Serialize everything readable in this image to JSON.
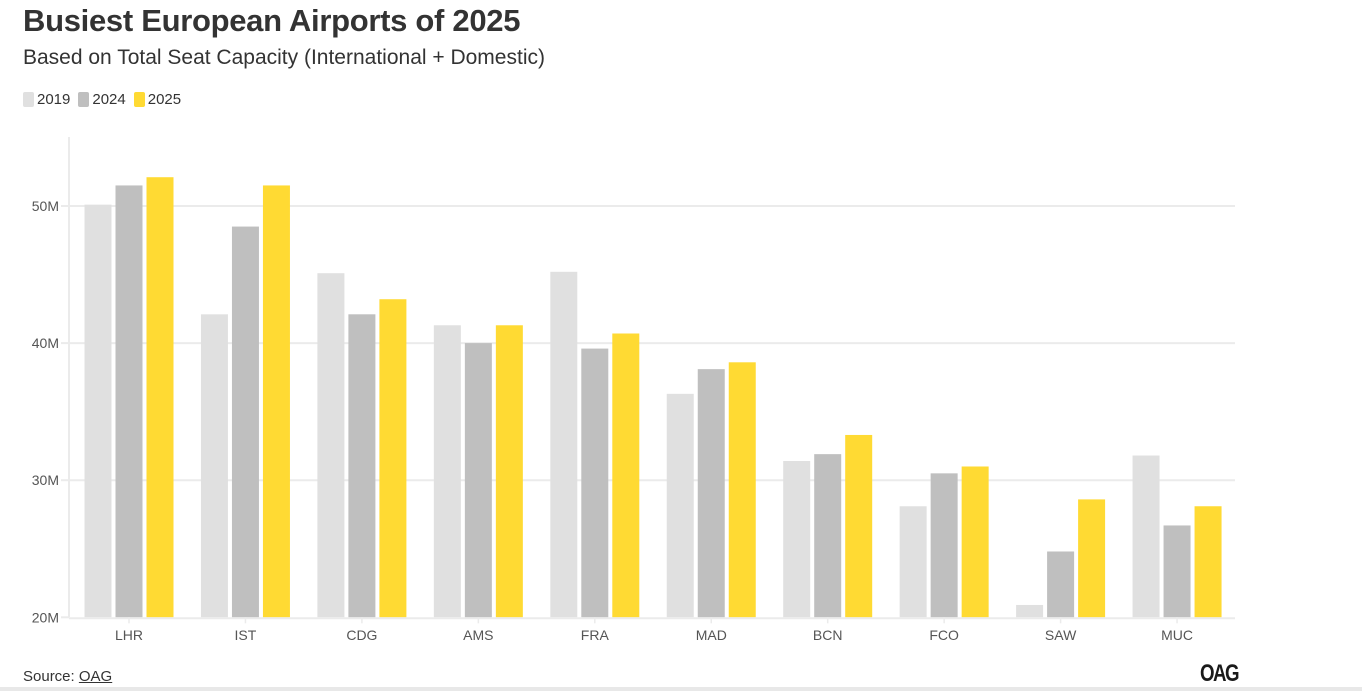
{
  "header": {
    "title": "Busiest European Airports of 2025",
    "subtitle": "Based on Total Seat Capacity (International + Domestic)"
  },
  "legend": [
    {
      "label": "2019",
      "color": "#e0e0e0"
    },
    {
      "label": "2024",
      "color": "#bfbfbf"
    },
    {
      "label": "2025",
      "color": "#ffda33"
    }
  ],
  "footer": {
    "source_prefix": "Source: ",
    "source_link": "OAG",
    "logo": "OAG"
  },
  "chart_data": {
    "type": "bar",
    "title": "Busiest European Airports of 2025",
    "subtitle": "Based on Total Seat Capacity (International + Domestic)",
    "xlabel": "",
    "ylabel": "",
    "categories": [
      "LHR",
      "IST",
      "CDG",
      "AMS",
      "FRA",
      "MAD",
      "BCN",
      "FCO",
      "SAW",
      "MUC"
    ],
    "series": [
      {
        "name": "2019",
        "color": "#e0e0e0",
        "values": [
          50.1,
          42.1,
          45.1,
          41.3,
          45.2,
          36.3,
          31.4,
          28.1,
          20.9,
          31.8
        ]
      },
      {
        "name": "2024",
        "color": "#bfbfbf",
        "values": [
          51.5,
          48.5,
          42.1,
          40.0,
          39.6,
          38.1,
          31.9,
          30.5,
          24.8,
          26.7
        ]
      },
      {
        "name": "2025",
        "color": "#ffda33",
        "values": [
          52.1,
          51.5,
          43.2,
          41.3,
          40.7,
          38.6,
          33.3,
          31.0,
          28.6,
          28.1
        ]
      }
    ],
    "units": "million seats",
    "ylim": [
      20,
      55
    ],
    "yticks": [
      20,
      30,
      40,
      50
    ],
    "ytick_labels": [
      "20M",
      "30M",
      "40M",
      "50M"
    ],
    "grid": true,
    "legend_position": "top-left"
  }
}
